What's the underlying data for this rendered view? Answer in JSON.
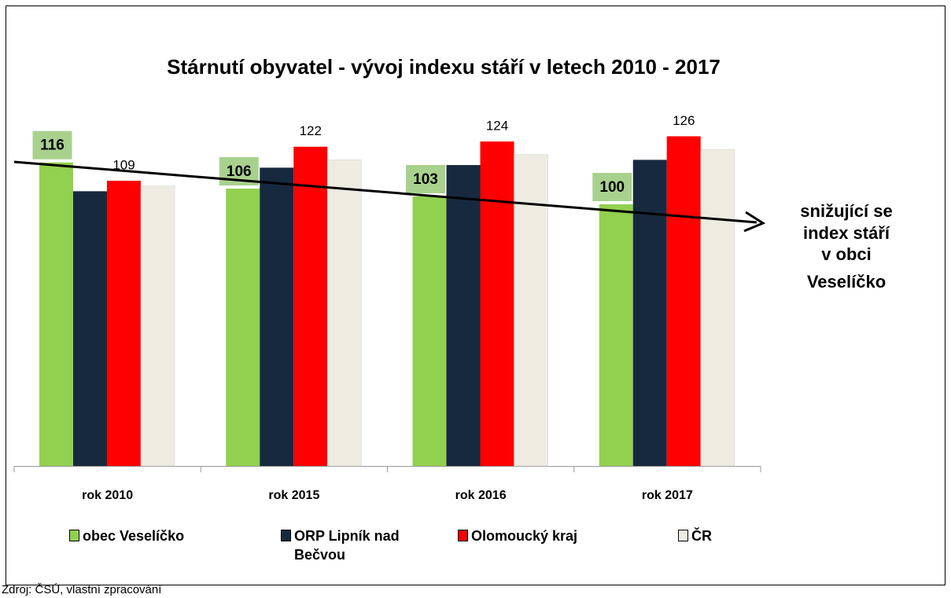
{
  "chart_data": {
    "type": "bar",
    "title": "Stárnutí obyvatel - vývoj indexu stáří v letech 2010 - 2017",
    "categories": [
      "rok 2010",
      "rok 2015",
      "rok 2016",
      "rok 2017"
    ],
    "series": [
      {
        "name": "obec Veselíčko",
        "color": "#92d050",
        "values": [
          116,
          106,
          103,
          100
        ],
        "data_labels": "boxed"
      },
      {
        "name": "ORP Lipník nad Bečvou",
        "color": "#17293f",
        "values": [
          105,
          114,
          115,
          117
        ]
      },
      {
        "name": "Olomoucký kraj",
        "color": "#ff0000",
        "values": [
          109,
          122,
          124,
          126
        ],
        "data_labels": "plain"
      },
      {
        "name": "ČR",
        "color": "#eeece1",
        "values": [
          107,
          117,
          119,
          121
        ]
      }
    ],
    "annotation": [
      "snižující se",
      "index stáří",
      "v obci",
      "Veselíčko"
    ],
    "source": "Zdroj: ČSÚ, vlastní zpracování"
  }
}
